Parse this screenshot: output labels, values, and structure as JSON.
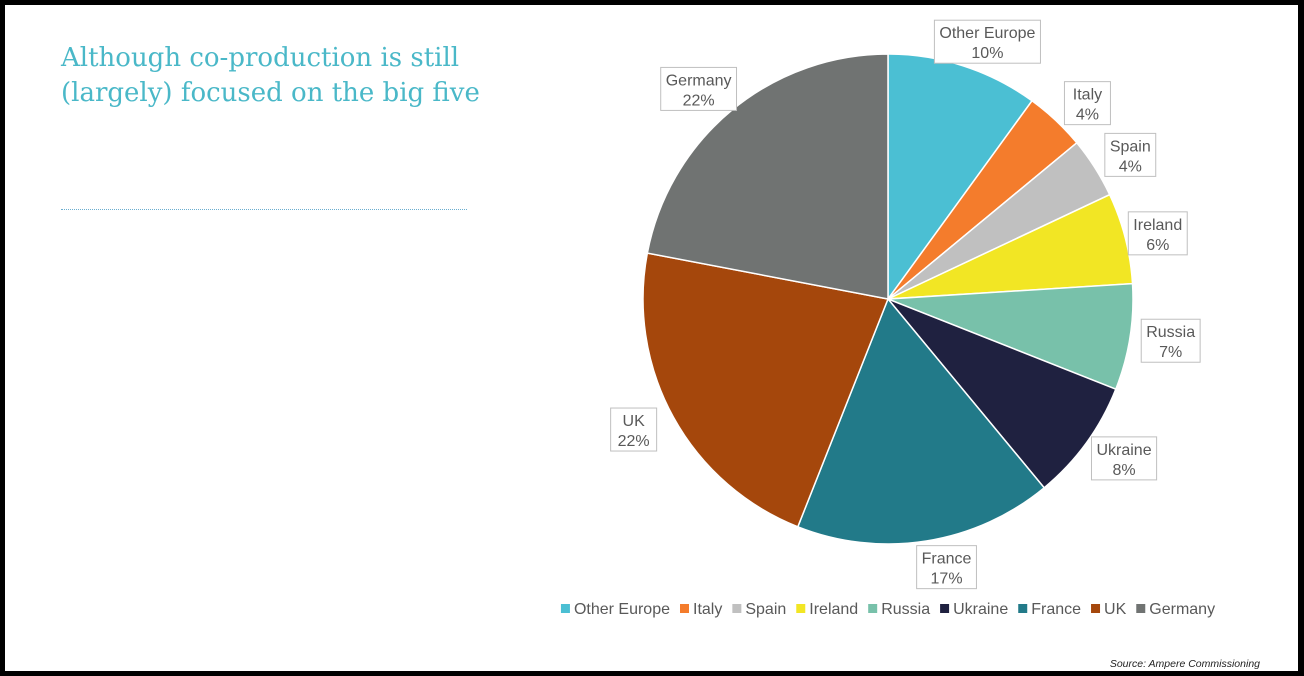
{
  "slide": {
    "title": "Although co-production is still (largely) focused on the big five",
    "source": "Source: Ampere Commissioning"
  },
  "chart_data": {
    "type": "pie",
    "categories": [
      "Other Europe",
      "Italy",
      "Spain",
      "Ireland",
      "Russia",
      "Ukraine",
      "France",
      "UK",
      "Germany"
    ],
    "values": [
      10,
      4,
      4,
      6,
      7,
      8,
      17,
      22,
      22
    ],
    "value_labels": [
      "10%",
      "4%",
      "4%",
      "6%",
      "7%",
      "8%",
      "17%",
      "22%",
      "22%"
    ],
    "colors": [
      "#4bbfd3",
      "#f47c2c",
      "#c0c0c0",
      "#f2e624",
      "#78c1aa",
      "#1f2140",
      "#227a89",
      "#a5470c",
      "#707372"
    ],
    "legend": "bottom",
    "start_angle": "top, clockwise"
  }
}
